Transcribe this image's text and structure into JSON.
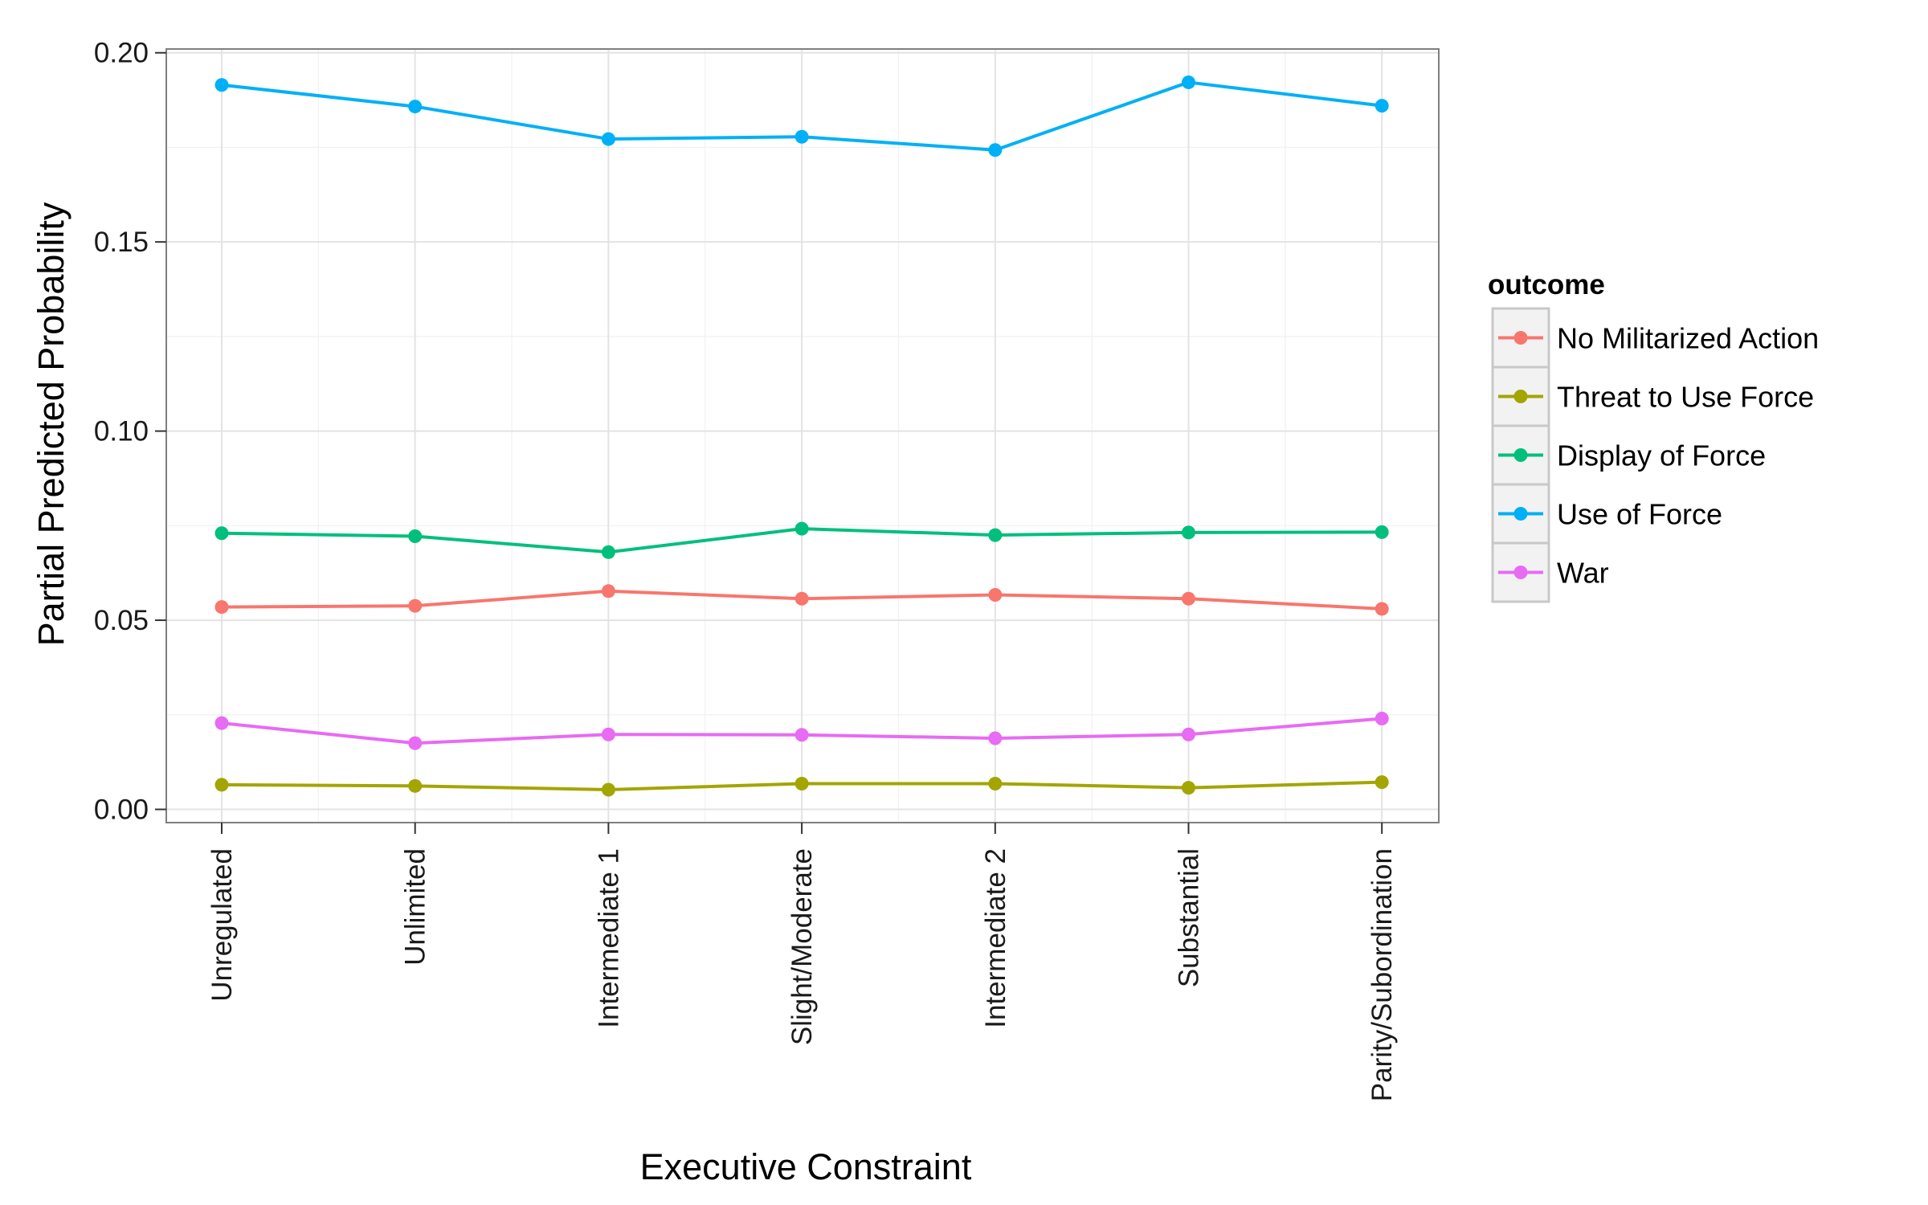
{
  "chart_data": {
    "type": "line",
    "title": "",
    "xlabel": "Executive Constraint",
    "ylabel": "Partial Predicted Probability",
    "categories": [
      "Unregulated",
      "Unlimited",
      "Intermediate 1",
      "Slight/Moderate",
      "Intermediate 2",
      "Substantial",
      "Parity/Subordination"
    ],
    "ylim": [
      -0.0035,
      0.201
    ],
    "yticks": [
      0.0,
      0.05,
      0.1,
      0.15,
      0.2
    ],
    "ytick_labels": [
      "0.00",
      "0.05",
      "0.10",
      "0.15",
      "0.20"
    ],
    "grid": true,
    "legend": {
      "title": "outcome",
      "position": "right"
    },
    "series": [
      {
        "name": "No Militarized Action",
        "color": "#F8766D",
        "values": [
          0.0535,
          0.0538,
          0.0577,
          0.0557,
          0.0567,
          0.0557,
          0.053
        ]
      },
      {
        "name": "Threat to Use Force",
        "color": "#A3A500",
        "values": [
          0.0065,
          0.0062,
          0.0052,
          0.0068,
          0.0068,
          0.0057,
          0.0072
        ]
      },
      {
        "name": "Display of Force",
        "color": "#00BF7D",
        "values": [
          0.073,
          0.0722,
          0.068,
          0.0742,
          0.0725,
          0.0732,
          0.0733
        ]
      },
      {
        "name": "Use of Force",
        "color": "#00B0F6",
        "values": [
          0.1915,
          0.1858,
          0.1772,
          0.1778,
          0.1743,
          0.1922,
          0.186
        ]
      },
      {
        "name": "War",
        "color": "#E76BF3",
        "values": [
          0.0228,
          0.0175,
          0.0198,
          0.0197,
          0.0188,
          0.0198,
          0.024
        ]
      }
    ]
  }
}
